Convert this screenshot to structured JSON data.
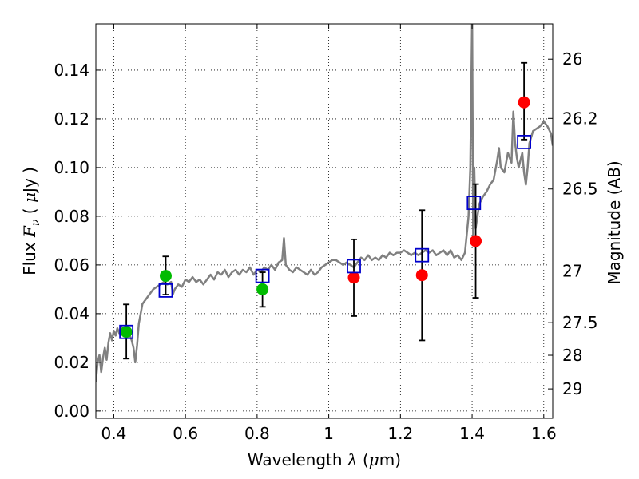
{
  "chart_data": {
    "type": "scatter",
    "xlabel": "Wavelength  λ (μm)",
    "xlabel_parts": [
      "Wavelength  ",
      "λ",
      " (",
      "μ",
      "m)"
    ],
    "ylabel": "Flux  Fν  ( μJy )",
    "ylabel_parts": [
      "Flux  ",
      "F",
      "ν",
      "  ( ",
      "μ",
      "Jy )"
    ],
    "y2label": "Magnitude (AB)",
    "xlim": [
      0.35,
      1.625
    ],
    "ylim": [
      -0.003,
      0.159
    ],
    "x_ticks": [
      0.4,
      0.6,
      0.8,
      1.0,
      1.2,
      1.4,
      1.6
    ],
    "x_tick_labels": [
      "0.4",
      "0.6",
      "0.8",
      "1",
      "1.2",
      "1.4",
      "1.6"
    ],
    "y_ticks": [
      0.0,
      0.02,
      0.04,
      0.06,
      0.08,
      0.1,
      0.12,
      0.14
    ],
    "y_tick_labels": [
      "0.00",
      "0.02",
      "0.04",
      "0.06",
      "0.08",
      "0.10",
      "0.12",
      "0.14"
    ],
    "y2_ticks": [
      {
        "label": "26",
        "flux": 0.1445
      },
      {
        "label": "26.2",
        "flux": 0.1202
      },
      {
        "label": "26.5",
        "flux": 0.0912
      },
      {
        "label": "27",
        "flux": 0.0575
      },
      {
        "label": "27.5",
        "flux": 0.0363
      },
      {
        "label": "28",
        "flux": 0.0229
      },
      {
        "label": "29",
        "flux": 0.0091
      }
    ],
    "grid": true,
    "colors": {
      "spectrum": "#808080",
      "green_points": "#00bb00",
      "red_points": "#ff0000",
      "model_boxes": "#0000cc",
      "errorbars": "#000000"
    },
    "series": [
      {
        "name": "model spectrum",
        "kind": "line",
        "points": [
          [
            0.35,
            0.012
          ],
          [
            0.355,
            0.02
          ],
          [
            0.36,
            0.023
          ],
          [
            0.365,
            0.016
          ],
          [
            0.37,
            0.022
          ],
          [
            0.375,
            0.026
          ],
          [
            0.38,
            0.021
          ],
          [
            0.385,
            0.028
          ],
          [
            0.39,
            0.032
          ],
          [
            0.395,
            0.029
          ],
          [
            0.4,
            0.033
          ],
          [
            0.405,
            0.031
          ],
          [
            0.41,
            0.034
          ],
          [
            0.415,
            0.032
          ],
          [
            0.42,
            0.035
          ],
          [
            0.425,
            0.033
          ],
          [
            0.43,
            0.034
          ],
          [
            0.435,
            0.032
          ],
          [
            0.44,
            0.034
          ],
          [
            0.445,
            0.031
          ],
          [
            0.45,
            0.029
          ],
          [
            0.455,
            0.026
          ],
          [
            0.46,
            0.02
          ],
          [
            0.465,
            0.027
          ],
          [
            0.47,
            0.036
          ],
          [
            0.475,
            0.04
          ],
          [
            0.48,
            0.044
          ],
          [
            0.49,
            0.046
          ],
          [
            0.5,
            0.048
          ],
          [
            0.51,
            0.05
          ],
          [
            0.52,
            0.051
          ],
          [
            0.53,
            0.052
          ],
          [
            0.54,
            0.053
          ],
          [
            0.55,
            0.052
          ],
          [
            0.56,
            0.053
          ],
          [
            0.565,
            0.048
          ],
          [
            0.57,
            0.05
          ],
          [
            0.58,
            0.052
          ],
          [
            0.59,
            0.051
          ],
          [
            0.6,
            0.054
          ],
          [
            0.61,
            0.053
          ],
          [
            0.62,
            0.055
          ],
          [
            0.63,
            0.053
          ],
          [
            0.64,
            0.054
          ],
          [
            0.65,
            0.052
          ],
          [
            0.66,
            0.054
          ],
          [
            0.67,
            0.056
          ],
          [
            0.68,
            0.054
          ],
          [
            0.69,
            0.057
          ],
          [
            0.7,
            0.056
          ],
          [
            0.71,
            0.058
          ],
          [
            0.72,
            0.055
          ],
          [
            0.73,
            0.057
          ],
          [
            0.74,
            0.058
          ],
          [
            0.75,
            0.056
          ],
          [
            0.76,
            0.058
          ],
          [
            0.77,
            0.057
          ],
          [
            0.78,
            0.059
          ],
          [
            0.79,
            0.056
          ],
          [
            0.8,
            0.058
          ],
          [
            0.81,
            0.057
          ],
          [
            0.82,
            0.059
          ],
          [
            0.83,
            0.058
          ],
          [
            0.84,
            0.06
          ],
          [
            0.85,
            0.058
          ],
          [
            0.86,
            0.061
          ],
          [
            0.87,
            0.062
          ],
          [
            0.875,
            0.071
          ],
          [
            0.88,
            0.06
          ],
          [
            0.89,
            0.058
          ],
          [
            0.9,
            0.057
          ],
          [
            0.91,
            0.059
          ],
          [
            0.92,
            0.058
          ],
          [
            0.93,
            0.057
          ],
          [
            0.94,
            0.056
          ],
          [
            0.95,
            0.058
          ],
          [
            0.96,
            0.056
          ],
          [
            0.97,
            0.057
          ],
          [
            0.98,
            0.059
          ],
          [
            0.99,
            0.06
          ],
          [
            1.0,
            0.061
          ],
          [
            1.01,
            0.062
          ],
          [
            1.02,
            0.062
          ],
          [
            1.03,
            0.061
          ],
          [
            1.04,
            0.06
          ],
          [
            1.05,
            0.061
          ],
          [
            1.06,
            0.06
          ],
          [
            1.07,
            0.059
          ],
          [
            1.08,
            0.061
          ],
          [
            1.09,
            0.063
          ],
          [
            1.1,
            0.062
          ],
          [
            1.11,
            0.064
          ],
          [
            1.12,
            0.062
          ],
          [
            1.13,
            0.063
          ],
          [
            1.14,
            0.062
          ],
          [
            1.15,
            0.064
          ],
          [
            1.16,
            0.063
          ],
          [
            1.17,
            0.065
          ],
          [
            1.18,
            0.064
          ],
          [
            1.19,
            0.065
          ],
          [
            1.2,
            0.065
          ],
          [
            1.21,
            0.066
          ],
          [
            1.22,
            0.065
          ],
          [
            1.23,
            0.064
          ],
          [
            1.24,
            0.065
          ],
          [
            1.25,
            0.064
          ],
          [
            1.26,
            0.065
          ],
          [
            1.27,
            0.066
          ],
          [
            1.28,
            0.065
          ],
          [
            1.29,
            0.066
          ],
          [
            1.3,
            0.064
          ],
          [
            1.31,
            0.065
          ],
          [
            1.32,
            0.066
          ],
          [
            1.33,
            0.064
          ],
          [
            1.34,
            0.066
          ],
          [
            1.35,
            0.063
          ],
          [
            1.36,
            0.064
          ],
          [
            1.37,
            0.062
          ],
          [
            1.38,
            0.065
          ],
          [
            1.39,
            0.08
          ],
          [
            1.395,
            0.1
          ],
          [
            1.4,
            0.162
          ],
          [
            1.403,
            0.07
          ],
          [
            1.406,
            0.1
          ],
          [
            1.41,
            0.075
          ],
          [
            1.42,
            0.085
          ],
          [
            1.43,
            0.088
          ],
          [
            1.44,
            0.09
          ],
          [
            1.45,
            0.093
          ],
          [
            1.46,
            0.095
          ],
          [
            1.47,
            0.103
          ],
          [
            1.475,
            0.108
          ],
          [
            1.48,
            0.1
          ],
          [
            1.49,
            0.098
          ],
          [
            1.5,
            0.106
          ],
          [
            1.51,
            0.102
          ],
          [
            1.515,
            0.123
          ],
          [
            1.52,
            0.11
          ],
          [
            1.525,
            0.104
          ],
          [
            1.53,
            0.1
          ],
          [
            1.535,
            0.103
          ],
          [
            1.54,
            0.106
          ],
          [
            1.545,
            0.098
          ],
          [
            1.55,
            0.093
          ],
          [
            1.555,
            0.1
          ],
          [
            1.56,
            0.11
          ],
          [
            1.57,
            0.115
          ],
          [
            1.58,
            0.116
          ],
          [
            1.59,
            0.117
          ],
          [
            1.6,
            0.119
          ],
          [
            1.61,
            0.117
          ],
          [
            1.62,
            0.114
          ],
          [
            1.625,
            0.109
          ]
        ]
      },
      {
        "name": "observed (green)",
        "kind": "scatter",
        "points": [
          {
            "x": 0.435,
            "y": 0.0325,
            "yerr_low": 0.0215,
            "yerr_high": 0.0438
          },
          {
            "x": 0.545,
            "y": 0.0555,
            "yerr_low": 0.0478,
            "yerr_high": 0.0635
          },
          {
            "x": 0.815,
            "y": 0.05,
            "yerr_low": 0.0428,
            "yerr_high": 0.057
          }
        ]
      },
      {
        "name": "observed (red)",
        "kind": "scatter",
        "points": [
          {
            "x": 1.07,
            "y": 0.0548,
            "yerr_low": 0.039,
            "yerr_high": 0.0705
          },
          {
            "x": 1.26,
            "y": 0.0558,
            "yerr_low": 0.029,
            "yerr_high": 0.0825
          },
          {
            "x": 1.41,
            "y": 0.0698,
            "yerr_low": 0.0465,
            "yerr_high": 0.0932
          },
          {
            "x": 1.545,
            "y": 0.1268,
            "yerr_low": 0.1115,
            "yerr_high": 0.143
          }
        ]
      },
      {
        "name": "synthetic photometry",
        "kind": "squares",
        "points": [
          {
            "x": 0.435,
            "y": 0.0325
          },
          {
            "x": 0.545,
            "y": 0.0495
          },
          {
            "x": 0.815,
            "y": 0.0555
          },
          {
            "x": 1.07,
            "y": 0.0595
          },
          {
            "x": 1.26,
            "y": 0.064
          },
          {
            "x": 1.405,
            "y": 0.0855
          },
          {
            "x": 1.545,
            "y": 0.1105
          }
        ]
      }
    ]
  }
}
